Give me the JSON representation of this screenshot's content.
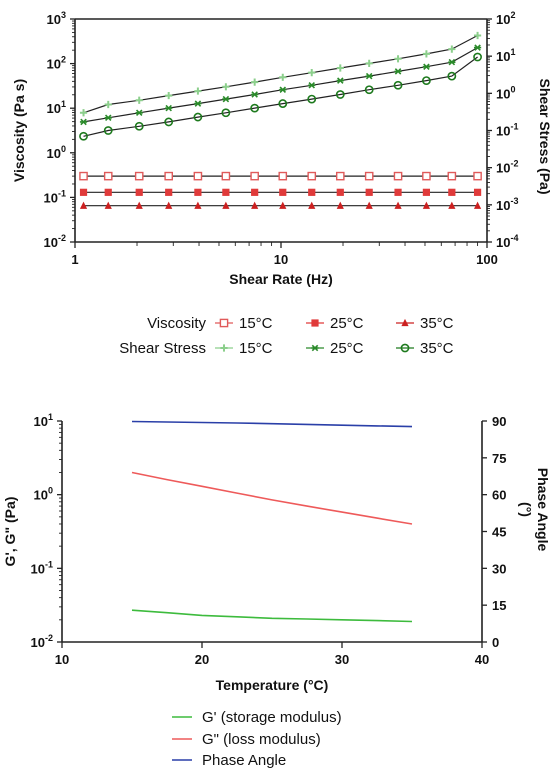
{
  "chart_data": [
    {
      "type": "line",
      "xlabel": "Shear Rate (Hz)",
      "ylabel": "Viscosity (Pa s)",
      "y2label": "Shear Stress (Pa)",
      "xscale": "log",
      "yscale": "log",
      "y2scale": "log",
      "xlim": [
        1,
        100
      ],
      "ylim": [
        0.01,
        1000
      ],
      "y2lim": [
        0.0001,
        100
      ],
      "x_ticks": [
        1,
        10,
        100
      ],
      "y_ticks": [
        0.01,
        0.1,
        1,
        10,
        100,
        1000
      ],
      "y2_ticks": [
        0.0001,
        0.001,
        0.01,
        0.1,
        1,
        10,
        100
      ],
      "x_tick_labels": [
        "1",
        "10",
        "100"
      ],
      "y_tick_labels": [
        [
          "10",
          "-2"
        ],
        [
          "10",
          "-1"
        ],
        [
          "10",
          "0"
        ],
        [
          "10",
          "1"
        ],
        [
          "10",
          "2"
        ],
        [
          "10",
          "3"
        ]
      ],
      "y2_tick_labels": [
        [
          "10",
          "-4"
        ],
        [
          "10",
          "-3"
        ],
        [
          "10",
          "-2"
        ],
        [
          "10",
          "-1"
        ],
        [
          "10",
          "0"
        ],
        [
          "10",
          "1"
        ],
        [
          "10",
          "2"
        ]
      ],
      "x": [
        1.1,
        1.45,
        2.05,
        2.85,
        3.95,
        5.4,
        7.45,
        10.2,
        14.1,
        19.4,
        26.8,
        37.0,
        50.8,
        67.5,
        90.0
      ],
      "series": [
        {
          "name": "15°C",
          "group": "Viscosity",
          "axis": "left",
          "marker": "square-open",
          "color": "#e05a5a",
          "values": [
            0.3,
            0.3,
            0.3,
            0.3,
            0.3,
            0.3,
            0.3,
            0.3,
            0.3,
            0.3,
            0.3,
            0.3,
            0.3,
            0.3,
            0.3
          ]
        },
        {
          "name": "25°C",
          "group": "Viscosity",
          "axis": "left",
          "marker": "square",
          "color": "#e03a3a",
          "values": [
            0.13,
            0.13,
            0.13,
            0.13,
            0.13,
            0.13,
            0.13,
            0.13,
            0.13,
            0.13,
            0.13,
            0.13,
            0.13,
            0.13,
            0.13
          ]
        },
        {
          "name": "35°C",
          "group": "Viscosity",
          "axis": "left",
          "marker": "triangle",
          "color": "#cc2020",
          "values": [
            0.065,
            0.065,
            0.065,
            0.065,
            0.065,
            0.065,
            0.065,
            0.065,
            0.065,
            0.065,
            0.065,
            0.065,
            0.065,
            0.065,
            0.065
          ]
        },
        {
          "name": "15°C",
          "group": "Shear Stress",
          "axis": "right",
          "marker": "plus",
          "color": "#8ccf8c",
          "values": [
            0.3,
            0.5,
            0.65,
            0.87,
            1.15,
            1.5,
            2.0,
            2.7,
            3.6,
            4.8,
            6.4,
            8.5,
            11.5,
            15.5,
            36
          ]
        },
        {
          "name": "25°C",
          "group": "Shear Stress",
          "axis": "right",
          "marker": "star",
          "color": "#2a8a2a",
          "values": [
            0.17,
            0.22,
            0.3,
            0.4,
            0.53,
            0.7,
            0.93,
            1.25,
            1.65,
            2.2,
            2.9,
            3.9,
            5.2,
            6.9,
            17
          ]
        },
        {
          "name": "35°C",
          "group": "Shear Stress",
          "axis": "right",
          "marker": "circle-open",
          "color": "#1e7a1e",
          "values": [
            0.07,
            0.1,
            0.13,
            0.17,
            0.23,
            0.3,
            0.4,
            0.53,
            0.7,
            0.93,
            1.25,
            1.65,
            2.2,
            2.9,
            9.5
          ]
        }
      ],
      "legend": {
        "rows": [
          {
            "label": "Viscosity",
            "entries": [
              "15°C",
              "25°C",
              "35°C"
            ]
          },
          {
            "label": "Shear Stress",
            "entries": [
              "15°C",
              "25°C",
              "35°C"
            ]
          }
        ],
        "placement": "bottom"
      }
    },
    {
      "type": "line",
      "xlabel": "Temperature (°C)",
      "ylabel": "G', G\" (Pa)",
      "y2label": "Phase Angle (°)",
      "y2label_lines": [
        "Phase Angle",
        "(°)"
      ],
      "xscale": "linear",
      "yscale": "log",
      "y2scale": "linear",
      "xlim": [
        10,
        40
      ],
      "ylim": [
        0.01,
        10
      ],
      "y2lim": [
        0,
        90
      ],
      "x_ticks": [
        10,
        20,
        30,
        40
      ],
      "y_ticks": [
        0.01,
        0.1,
        1,
        10
      ],
      "y2_ticks": [
        0,
        15,
        30,
        45,
        60,
        75,
        90
      ],
      "x_tick_labels": [
        "10",
        "20",
        "30",
        "40"
      ],
      "y_tick_labels": [
        [
          "10",
          "-2"
        ],
        [
          "10",
          "-1"
        ],
        [
          "10",
          "0"
        ],
        [
          "10",
          "1"
        ]
      ],
      "y2_tick_labels": [
        "0",
        "15",
        "30",
        "45",
        "60",
        "75",
        "90"
      ],
      "x": [
        15,
        17.5,
        20,
        22.5,
        25,
        27.5,
        30,
        32.5,
        35
      ],
      "series": [
        {
          "name": "G' (storage modulus)",
          "axis": "left",
          "color": "#3dbb3d",
          "values": [
            0.027,
            0.025,
            0.023,
            0.022,
            0.021,
            0.0205,
            0.02,
            0.0195,
            0.019
          ]
        },
        {
          "name": "G\" (loss modulus)",
          "axis": "left",
          "color": "#ee5a5a",
          "values": [
            2.0,
            1.6,
            1.3,
            1.05,
            0.85,
            0.7,
            0.58,
            0.48,
            0.4
          ]
        },
        {
          "name": "Phase Angle",
          "axis": "right",
          "color": "#2a3fa8",
          "values": [
            89.8,
            89.6,
            89.4,
            89.2,
            88.9,
            88.6,
            88.3,
            88.0,
            87.7
          ]
        }
      ],
      "legend": {
        "placement": "bottom",
        "entries": [
          "G' (storage modulus)",
          "G\" (loss modulus)",
          "Phase Angle"
        ]
      }
    }
  ]
}
